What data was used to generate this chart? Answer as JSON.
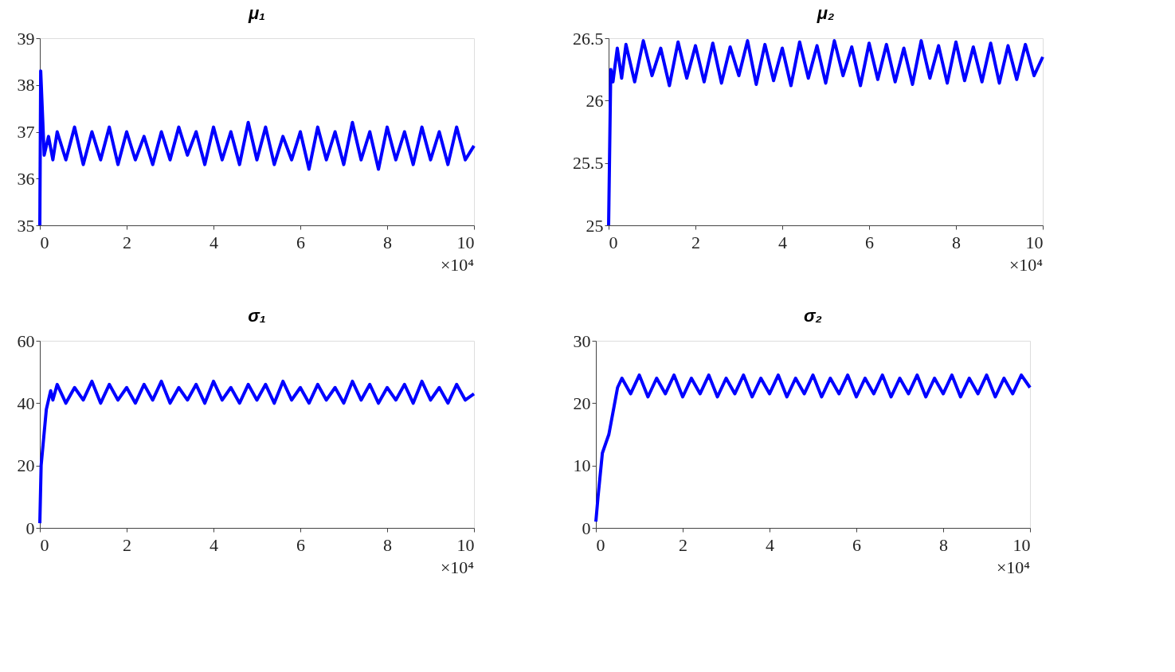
{
  "chart_data": [
    {
      "type": "line",
      "title": "μ₁",
      "annotations": [
        "×10⁴"
      ],
      "xlim": [
        0,
        10
      ],
      "xticks": [
        0,
        2,
        4,
        6,
        8,
        10
      ],
      "ylim": [
        35,
        39
      ],
      "yticks": [
        35,
        36,
        37,
        38,
        39
      ],
      "grid": false,
      "marker": "none",
      "line_style": "solid",
      "series": [
        {
          "color": "#0000ff",
          "x": [
            0,
            0.02,
            0.1,
            0.2,
            0.3,
            0.4,
            0.6,
            0.8,
            1.0,
            1.2,
            1.4,
            1.6,
            1.8,
            2.0,
            2.2,
            2.4,
            2.6,
            2.8,
            3.0,
            3.2,
            3.4,
            3.6,
            3.8,
            4.0,
            4.2,
            4.4,
            4.6,
            4.8,
            5.0,
            5.2,
            5.4,
            5.6,
            5.8,
            6.0,
            6.2,
            6.4,
            6.6,
            6.8,
            7.0,
            7.2,
            7.4,
            7.6,
            7.8,
            8.0,
            8.2,
            8.4,
            8.6,
            8.8,
            9.0,
            9.2,
            9.4,
            9.6,
            9.8,
            10.0
          ],
          "values": [
            35,
            38.3,
            36.5,
            36.9,
            36.4,
            37.0,
            36.4,
            37.1,
            36.3,
            37.0,
            36.4,
            37.1,
            36.3,
            37.0,
            36.4,
            36.9,
            36.3,
            37.0,
            36.4,
            37.1,
            36.5,
            37.0,
            36.3,
            37.1,
            36.4,
            37.0,
            36.3,
            37.2,
            36.4,
            37.1,
            36.3,
            36.9,
            36.4,
            37.0,
            36.2,
            37.1,
            36.4,
            37.0,
            36.3,
            37.2,
            36.4,
            37.0,
            36.2,
            37.1,
            36.4,
            37.0,
            36.3,
            37.1,
            36.4,
            37.0,
            36.3,
            37.1,
            36.4,
            36.7
          ]
        }
      ]
    },
    {
      "type": "line",
      "title": "μ₂",
      "annotations": [
        "×10⁴"
      ],
      "xlim": [
        0,
        10
      ],
      "xticks": [
        0,
        2,
        4,
        6,
        8,
        10
      ],
      "ylim": [
        25,
        26.5
      ],
      "yticks": [
        25,
        25.5,
        26,
        26.5
      ],
      "grid": false,
      "marker": "none",
      "line_style": "solid",
      "series": [
        {
          "color": "#0000ff",
          "x": [
            0,
            0.05,
            0.1,
            0.2,
            0.3,
            0.4,
            0.6,
            0.8,
            1.0,
            1.2,
            1.4,
            1.6,
            1.8,
            2.0,
            2.2,
            2.4,
            2.6,
            2.8,
            3.0,
            3.2,
            3.4,
            3.6,
            3.8,
            4.0,
            4.2,
            4.4,
            4.6,
            4.8,
            5.0,
            5.2,
            5.4,
            5.6,
            5.8,
            6.0,
            6.2,
            6.4,
            6.6,
            6.8,
            7.0,
            7.2,
            7.4,
            7.6,
            7.8,
            8.0,
            8.2,
            8.4,
            8.6,
            8.8,
            9.0,
            9.2,
            9.4,
            9.6,
            9.8,
            10.0
          ],
          "values": [
            25,
            26.25,
            26.15,
            26.42,
            26.18,
            26.45,
            26.15,
            26.48,
            26.2,
            26.42,
            26.12,
            26.47,
            26.18,
            26.44,
            26.15,
            26.46,
            26.14,
            26.43,
            26.2,
            26.48,
            26.13,
            26.45,
            26.16,
            26.42,
            26.12,
            26.47,
            26.18,
            26.44,
            26.14,
            26.48,
            26.2,
            26.43,
            26.12,
            26.46,
            26.17,
            26.45,
            26.15,
            26.42,
            26.13,
            26.48,
            26.18,
            26.44,
            26.14,
            26.47,
            26.16,
            26.43,
            26.15,
            26.46,
            26.14,
            26.44,
            26.17,
            26.45,
            26.2,
            26.35
          ]
        }
      ]
    },
    {
      "type": "line",
      "title": "σ₁",
      "annotations": [
        "×10⁴"
      ],
      "xlim": [
        0,
        10
      ],
      "xticks": [
        0,
        2,
        4,
        6,
        8,
        10
      ],
      "ylim": [
        0,
        60
      ],
      "yticks": [
        0,
        20,
        40,
        60
      ],
      "grid": false,
      "marker": "none",
      "line_style": "solid",
      "series": [
        {
          "color": "#0000ff",
          "x": [
            0,
            0.03,
            0.15,
            0.25,
            0.3,
            0.4,
            0.6,
            0.8,
            1.0,
            1.2,
            1.4,
            1.6,
            1.8,
            2.0,
            2.2,
            2.4,
            2.6,
            2.8,
            3.0,
            3.2,
            3.4,
            3.6,
            3.8,
            4.0,
            4.2,
            4.4,
            4.6,
            4.8,
            5.0,
            5.2,
            5.4,
            5.6,
            5.8,
            6.0,
            6.2,
            6.4,
            6.6,
            6.8,
            7.0,
            7.2,
            7.4,
            7.6,
            7.8,
            8.0,
            8.2,
            8.4,
            8.6,
            8.8,
            9.0,
            9.2,
            9.4,
            9.6,
            9.8,
            10.0
          ],
          "values": [
            1.5,
            20,
            38,
            44,
            41,
            46,
            40,
            45,
            41,
            47,
            40,
            46,
            41,
            45,
            40,
            46,
            41,
            47,
            40,
            45,
            41,
            46,
            40,
            47,
            41,
            45,
            40,
            46,
            41,
            46,
            40,
            47,
            41,
            45,
            40,
            46,
            41,
            45,
            40,
            47,
            41,
            46,
            40,
            45,
            41,
            46,
            40,
            47,
            41,
            45,
            40,
            46,
            41,
            43
          ]
        }
      ]
    },
    {
      "type": "line",
      "title": "σ₂",
      "annotations": [
        "×10⁴"
      ],
      "xlim": [
        0,
        10
      ],
      "xticks": [
        0,
        2,
        4,
        6,
        8,
        10
      ],
      "ylim": [
        0,
        30
      ],
      "yticks": [
        0,
        10,
        20,
        30
      ],
      "grid": false,
      "marker": "none",
      "line_style": "solid",
      "series": [
        {
          "color": "#0000ff",
          "x": [
            0,
            0.05,
            0.15,
            0.3,
            0.5,
            0.6,
            0.8,
            1.0,
            1.2,
            1.4,
            1.6,
            1.8,
            2.0,
            2.2,
            2.4,
            2.6,
            2.8,
            3.0,
            3.2,
            3.4,
            3.6,
            3.8,
            4.0,
            4.2,
            4.4,
            4.6,
            4.8,
            5.0,
            5.2,
            5.4,
            5.6,
            5.8,
            6.0,
            6.2,
            6.4,
            6.6,
            6.8,
            7.0,
            7.2,
            7.4,
            7.6,
            7.8,
            8.0,
            8.2,
            8.4,
            8.6,
            8.8,
            9.0,
            9.2,
            9.4,
            9.6,
            9.8,
            10.0
          ],
          "values": [
            1,
            5,
            12,
            15,
            22.5,
            24,
            21.5,
            24.5,
            21,
            24,
            21.5,
            24.5,
            21,
            24,
            21.5,
            24.5,
            21,
            24,
            21.5,
            24.5,
            21,
            24,
            21.5,
            24.5,
            21,
            24,
            21.5,
            24.5,
            21,
            24,
            21.5,
            24.5,
            21,
            24,
            21.5,
            24.5,
            21,
            24,
            21.5,
            24.5,
            21,
            24,
            21.5,
            24.5,
            21,
            24,
            21.5,
            24.5,
            21,
            24,
            21.5,
            24.5,
            22.5
          ]
        }
      ]
    }
  ]
}
